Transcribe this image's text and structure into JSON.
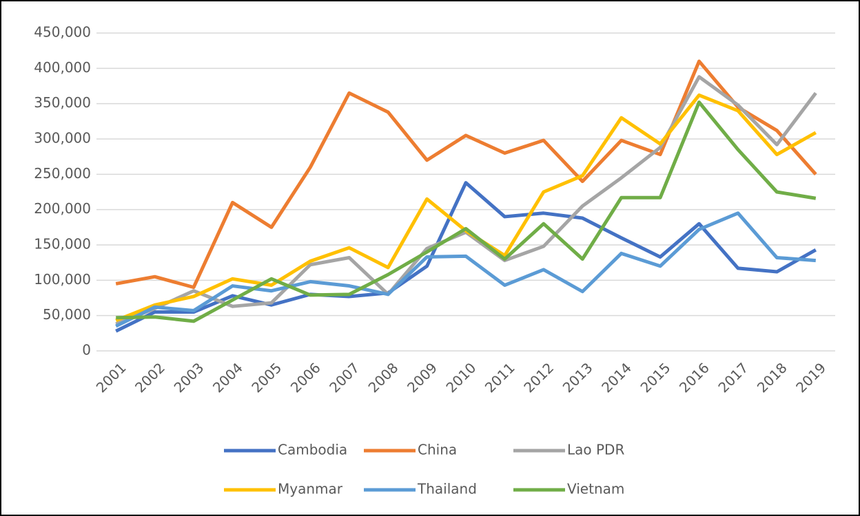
{
  "chart_data": {
    "type": "line",
    "categories": [
      "2001",
      "2002",
      "2003",
      "2004",
      "2005",
      "2006",
      "2007",
      "2008",
      "2009",
      "2010",
      "2011",
      "2012",
      "2013",
      "2014",
      "2015",
      "2016",
      "2017",
      "2018",
      "2019"
    ],
    "series": [
      {
        "name": "Cambodia",
        "color": "#4472c4",
        "values": [
          28000,
          55000,
          55000,
          78000,
          65000,
          80000,
          77000,
          82000,
          120000,
          238000,
          190000,
          195000,
          188000,
          160000,
          133000,
          180000,
          117000,
          112000,
          143000
        ]
      },
      {
        "name": "China",
        "color": "#ed7d31",
        "values": [
          95000,
          105000,
          90000,
          210000,
          175000,
          260000,
          365000,
          338000,
          270000,
          305000,
          280000,
          298000,
          240000,
          298000,
          278000,
          410000,
          345000,
          312000,
          250000
        ]
      },
      {
        "name": "Lao PDR",
        "color": "#a5a5a5",
        "values": [
          38000,
          60000,
          85000,
          63000,
          68000,
          122000,
          132000,
          80000,
          145000,
          168000,
          128000,
          148000,
          205000,
          245000,
          288000,
          388000,
          348000,
          292000,
          365000
        ]
      },
      {
        "name": "Myanmar",
        "color": "#ffc000",
        "values": [
          43000,
          65000,
          77000,
          102000,
          93000,
          127000,
          146000,
          118000,
          215000,
          170000,
          135000,
          225000,
          248000,
          330000,
          293000,
          362000,
          340000,
          278000,
          309000
        ]
      },
      {
        "name": "Thailand",
        "color": "#5b9bd5",
        "values": [
          35000,
          62000,
          57000,
          92000,
          85000,
          98000,
          92000,
          80000,
          133000,
          134000,
          93000,
          115000,
          84000,
          138000,
          120000,
          172000,
          195000,
          132000,
          128000
        ]
      },
      {
        "name": "Vietnam",
        "color": "#70ad47",
        "values": [
          47000,
          48000,
          42000,
          72000,
          102000,
          79000,
          80000,
          108000,
          140000,
          173000,
          130000,
          180000,
          130000,
          217000,
          217000,
          352000,
          285000,
          225000,
          216000
        ]
      }
    ],
    "ylim": [
      0,
      450000
    ],
    "yticks": [
      0,
      {
        "value": 50000,
        "label": "50,000"
      },
      {
        "value": 100000,
        "label": "100,000"
      },
      {
        "value": 150000,
        "label": "150,000"
      },
      {
        "value": 200000,
        "label": "200,000"
      },
      {
        "value": 250000,
        "label": "250,000"
      },
      {
        "value": 300000,
        "label": "300,000"
      },
      {
        "value": 350000,
        "label": "350,000"
      },
      {
        "value": 400000,
        "label": "400,000"
      },
      {
        "value": 450000,
        "label": "450,000"
      }
    ],
    "grid": true,
    "legend": "bottom"
  }
}
